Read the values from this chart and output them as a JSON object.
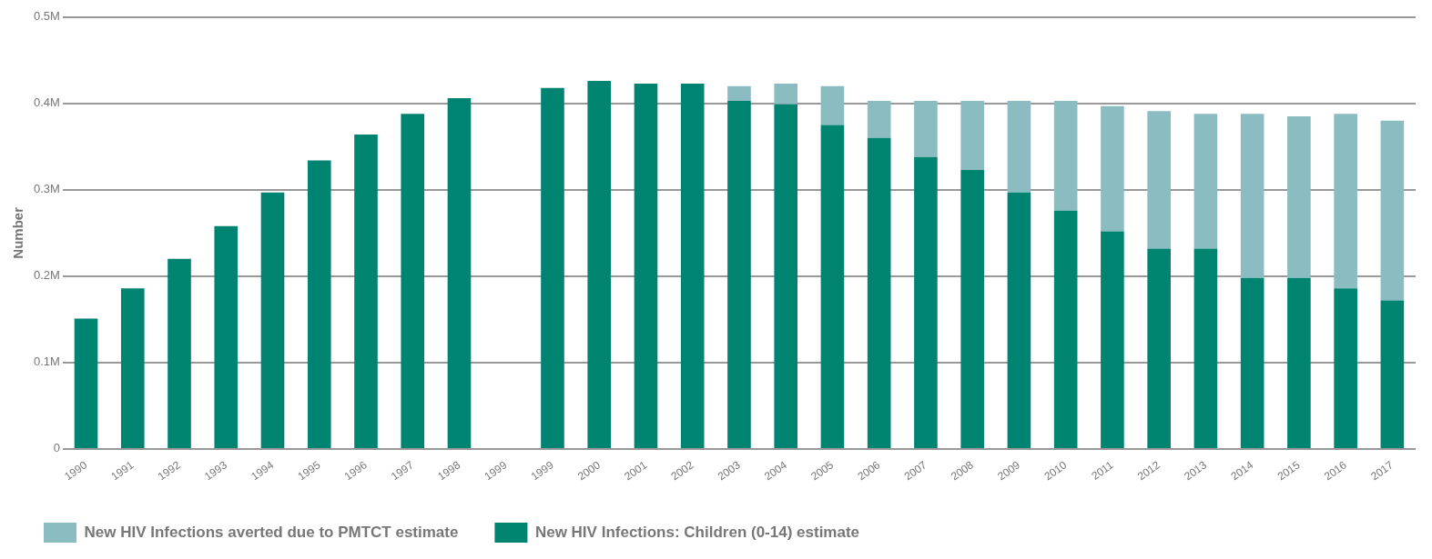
{
  "chart_data": {
    "type": "bar",
    "ylabel": "Number",
    "stacked": true,
    "grid": "y",
    "legend": "bottom left",
    "categories": [
      "1990",
      "1991",
      "1992",
      "1993",
      "1994",
      "1995",
      "1996",
      "1997",
      "1998",
      "1999",
      "1999",
      "2000",
      "2001",
      "2002",
      "2003",
      "2004",
      "2005",
      "2006",
      "2007",
      "2008",
      "2009",
      "2010",
      "2011",
      "2012",
      "2013",
      "2014",
      "2015",
      "2016",
      "2017"
    ],
    "series": [
      {
        "name": "New HIV Infections: Children (0-14) estimate",
        "color": "#008472",
        "values": [
          0.151,
          0.186,
          0.22,
          0.258,
          0.297,
          0.334,
          0.364,
          0.388,
          0.406,
          null,
          0.418,
          0.426,
          0.423,
          0.423,
          0.403,
          0.399,
          0.375,
          0.36,
          0.338,
          0.323,
          0.297,
          0.276,
          0.252,
          0.232,
          0.232,
          0.198,
          0.198,
          0.186,
          0.172
        ]
      },
      {
        "name": "New HIV Infections averted due to PMTCT estimate",
        "color": "#8bbcc2",
        "values": [
          0,
          0,
          0,
          0,
          0,
          0,
          0,
          0,
          0,
          null,
          0,
          0,
          0,
          0,
          0.017,
          0.024,
          0.045,
          0.043,
          0.065,
          0.08,
          0.106,
          0.127,
          0.145,
          0.159,
          0.156,
          0.19,
          0.187,
          0.202,
          0.208
        ]
      }
    ],
    "ylim": [
      0,
      0.5
    ],
    "yticks": [
      {
        "value": 0,
        "label": "0"
      },
      {
        "value": 0.1,
        "label": "0.1M"
      },
      {
        "value": 0.2,
        "label": "0.2M"
      },
      {
        "value": 0.3,
        "label": "0.3M"
      },
      {
        "value": 0.4,
        "label": "0.4M"
      },
      {
        "value": 0.5,
        "label": "0.5M"
      }
    ]
  }
}
